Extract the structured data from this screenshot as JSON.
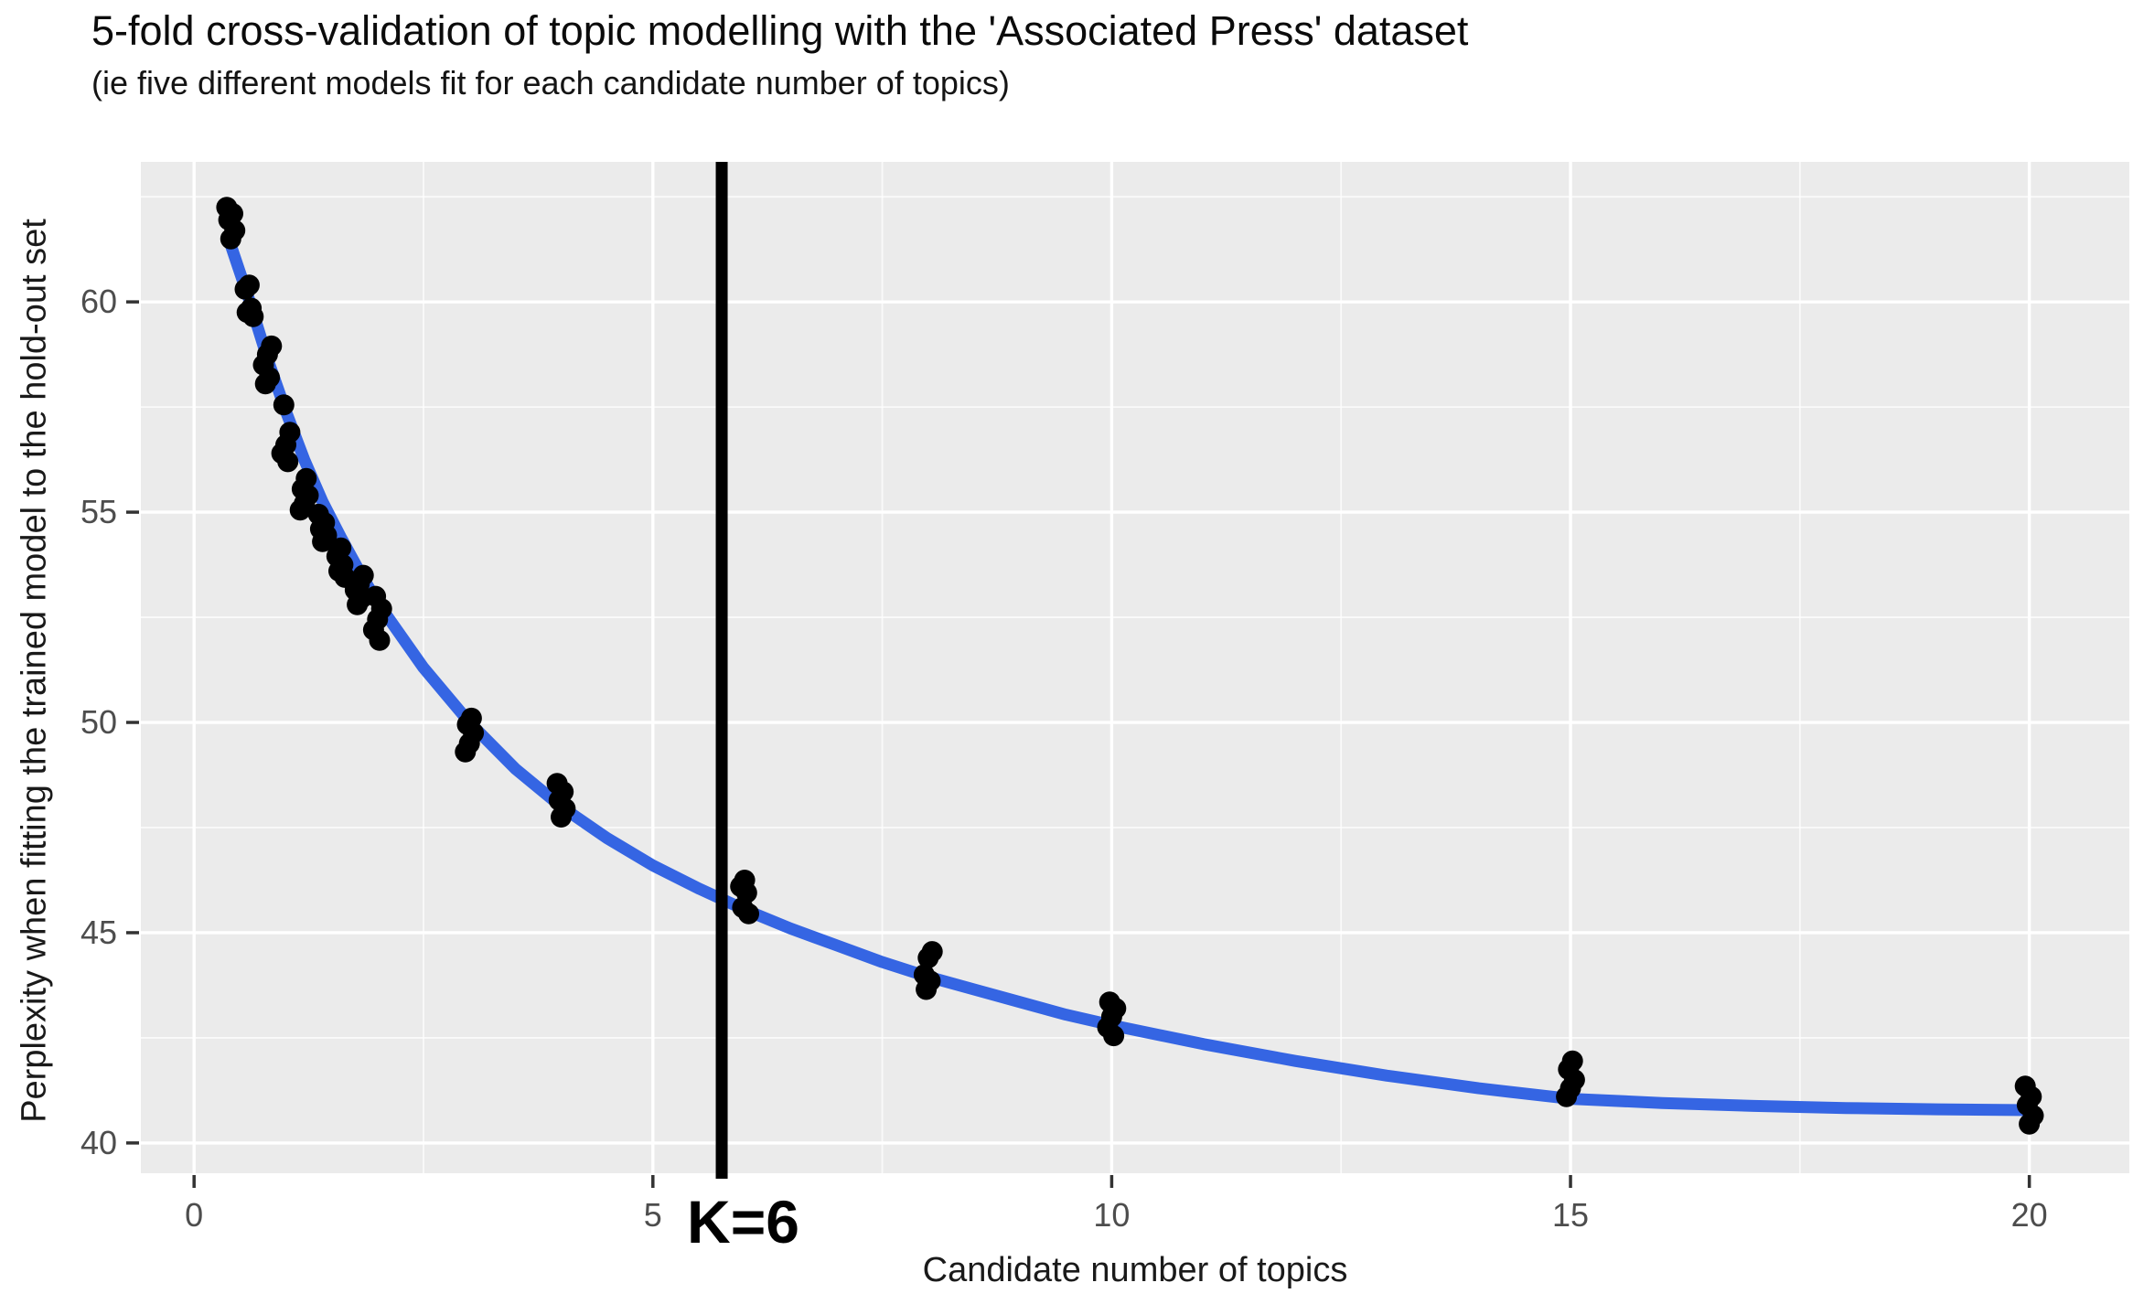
{
  "header": {
    "title": "5-fold cross-validation of topic modelling with the 'Associated Press' dataset",
    "subtitle": "(ie five different models fit for each candidate number of topics)"
  },
  "chart_data": {
    "type": "scatter",
    "title": "5-fold cross-validation of topic modelling with the 'Associated Press' dataset",
    "subtitle": "(ie five different models fit for each candidate number of topics)",
    "xlabel": "Candidate number of topics",
    "ylabel": "Perplexity when fitting the trained model to the hold-out set",
    "x_ticks": [
      0,
      5,
      10,
      15,
      20
    ],
    "x_minor_ticks": [
      2.5,
      7.5,
      12.5,
      17.5
    ],
    "y_ticks": [
      40,
      45,
      50,
      55,
      60
    ],
    "y_minor_ticks": [
      42.5,
      47.5,
      52.5,
      57.5,
      62.5
    ],
    "x_domain": [
      -0.58,
      21.09
    ],
    "y_domain": [
      39.28,
      63.33
    ],
    "grid": "on",
    "legend": "none",
    "points_per_candidate": 5,
    "series": [
      {
        "k": 0.4,
        "perplexity": [
          62.25,
          62.1,
          61.95,
          61.7,
          61.5
        ]
      },
      {
        "k": 0.6,
        "perplexity": [
          60.4,
          60.3,
          59.85,
          59.75,
          59.65
        ]
      },
      {
        "k": 0.8,
        "perplexity": [
          58.95,
          58.75,
          58.5,
          58.2,
          58.05
        ]
      },
      {
        "k": 1.0,
        "perplexity": [
          57.55,
          56.9,
          56.6,
          56.4,
          56.2
        ]
      },
      {
        "k": 1.2,
        "perplexity": [
          55.8,
          55.55,
          55.4,
          55.2,
          55.05
        ]
      },
      {
        "k": 1.4,
        "perplexity": [
          54.95,
          54.75,
          54.6,
          54.45,
          54.3
        ]
      },
      {
        "k": 1.6,
        "perplexity": [
          54.15,
          53.95,
          53.75,
          53.6,
          53.45
        ]
      },
      {
        "k": 1.8,
        "perplexity": [
          53.5,
          53.3,
          53.15,
          52.95,
          52.8
        ]
      },
      {
        "k": 2.0,
        "perplexity": [
          53.0,
          52.7,
          52.45,
          52.2,
          51.95
        ]
      },
      {
        "k": 3.0,
        "perplexity": [
          50.1,
          49.95,
          49.75,
          49.5,
          49.3
        ]
      },
      {
        "k": 4.0,
        "perplexity": [
          48.55,
          48.35,
          48.15,
          47.95,
          47.75
        ]
      },
      {
        "k": 6.0,
        "perplexity": [
          46.25,
          46.1,
          45.95,
          45.6,
          45.45
        ]
      },
      {
        "k": 8.0,
        "perplexity": [
          44.55,
          44.4,
          44.0,
          43.85,
          43.65
        ]
      },
      {
        "k": 10.0,
        "perplexity": [
          43.35,
          43.2,
          43.0,
          42.75,
          42.55
        ]
      },
      {
        "k": 15.0,
        "perplexity": [
          41.95,
          41.75,
          41.5,
          41.3,
          41.1
        ]
      },
      {
        "k": 20.0,
        "perplexity": [
          41.35,
          41.1,
          40.9,
          40.65,
          40.45
        ]
      }
    ],
    "smooth_line": {
      "name": "loess-smooth",
      "points": [
        [
          0.4,
          61.35
        ],
        [
          0.6,
          60.05
        ],
        [
          0.8,
          58.65
        ],
        [
          1.0,
          57.4
        ],
        [
          1.2,
          56.25
        ],
        [
          1.4,
          55.25
        ],
        [
          1.6,
          54.4
        ],
        [
          1.8,
          53.6
        ],
        [
          2.0,
          52.85
        ],
        [
          2.5,
          51.3
        ],
        [
          3.0,
          50.0
        ],
        [
          3.5,
          48.9
        ],
        [
          4.0,
          48.0
        ],
        [
          4.5,
          47.25
        ],
        [
          5.0,
          46.6
        ],
        [
          5.5,
          46.05
        ],
        [
          6.0,
          45.55
        ],
        [
          6.5,
          45.1
        ],
        [
          7.0,
          44.7
        ],
        [
          7.5,
          44.3
        ],
        [
          8.0,
          43.95
        ],
        [
          8.5,
          43.65
        ],
        [
          9.0,
          43.35
        ],
        [
          9.5,
          43.05
        ],
        [
          10.0,
          42.8
        ],
        [
          11.0,
          42.35
        ],
        [
          12.0,
          41.95
        ],
        [
          13.0,
          41.6
        ],
        [
          14.0,
          41.3
        ],
        [
          15.0,
          41.05
        ],
        [
          16.0,
          40.95
        ],
        [
          17.0,
          40.88
        ],
        [
          18.0,
          40.83
        ],
        [
          19.0,
          40.8
        ],
        [
          20.0,
          40.78
        ]
      ]
    },
    "vline": {
      "label": "K=6",
      "k": 6,
      "draw_k": 5.75
    },
    "colors": {
      "panel_bg": "#EBEBEB",
      "grid": "#FFFFFF",
      "points": "#000000",
      "smooth_line": "#3565E3",
      "vline": "#000000",
      "tick_label": "#4d4d4d",
      "tick_mark": "#333333"
    }
  }
}
